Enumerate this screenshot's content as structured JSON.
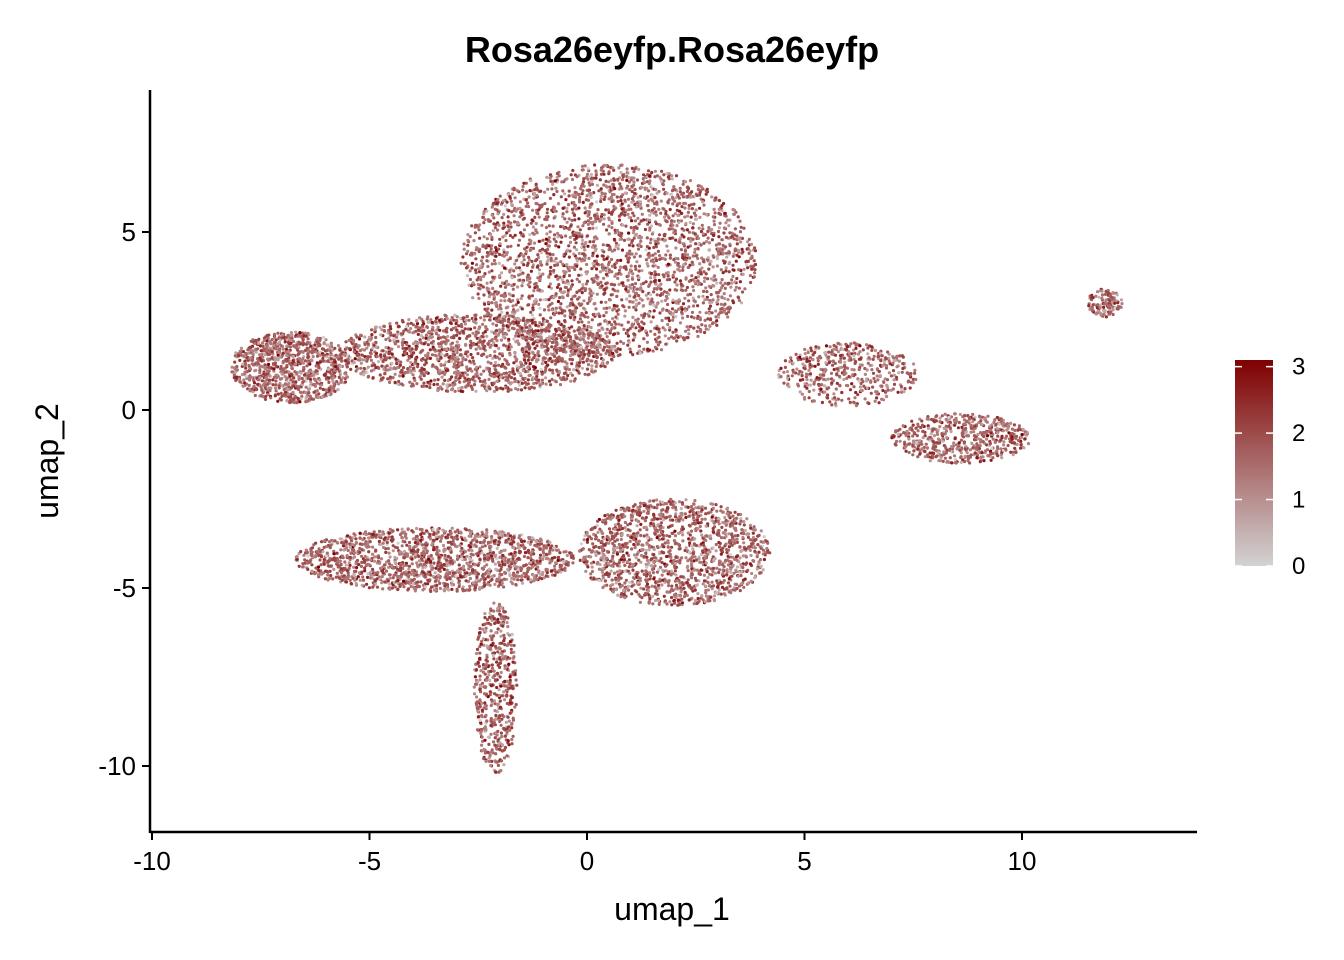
{
  "chart_data": {
    "type": "scatter",
    "title": "Rosa26eyfp.Rosa26eyfp",
    "xlabel": "umap_1",
    "ylabel": "umap_2",
    "xlim": [
      -10,
      14
    ],
    "ylim": [
      -12,
      9
    ],
    "x_ticks": [
      "-10",
      "-5",
      "0",
      "5",
      "10"
    ],
    "y_ticks": [
      "-10",
      "-5",
      "0",
      "5"
    ],
    "x_tick_values": [
      -10,
      -5,
      0,
      5,
      10
    ],
    "y_tick_values": [
      -10,
      -5,
      0,
      5
    ],
    "grid": false,
    "legend": {
      "placement": "right",
      "type": "colorbar",
      "ticks": [
        "0",
        "1",
        "2",
        "3"
      ],
      "tick_values": [
        0,
        1,
        2,
        3
      ],
      "range": [
        0,
        3.1
      ],
      "color_low": "#d3d3d3",
      "color_high": "#7f0000"
    },
    "clusters": [
      {
        "cx": 0.5,
        "cy": 4.2,
        "rx": 3.4,
        "ry": 2.7,
        "n": 2600
      },
      {
        "cx": -2.5,
        "cy": 1.6,
        "rx": 3.2,
        "ry": 1.1,
        "n": 1500
      },
      {
        "cx": -6.8,
        "cy": 1.2,
        "rx": 1.4,
        "ry": 1.0,
        "n": 900
      },
      {
        "cx": -3.5,
        "cy": -4.2,
        "rx": 3.2,
        "ry": 0.9,
        "n": 1500
      },
      {
        "cx": 2.0,
        "cy": -4.0,
        "rx": 2.2,
        "ry": 1.5,
        "n": 1400
      },
      {
        "cx": -2.1,
        "cy": -7.8,
        "rx": 0.5,
        "ry": 2.4,
        "n": 500
      },
      {
        "cx": 6.0,
        "cy": 1.0,
        "rx": 1.6,
        "ry": 0.9,
        "n": 450
      },
      {
        "cx": 8.6,
        "cy": -0.8,
        "rx": 1.6,
        "ry": 0.7,
        "n": 550
      },
      {
        "cx": 11.9,
        "cy": 3.0,
        "rx": 0.4,
        "ry": 0.4,
        "n": 120
      }
    ],
    "mean_expression": 1.6
  }
}
